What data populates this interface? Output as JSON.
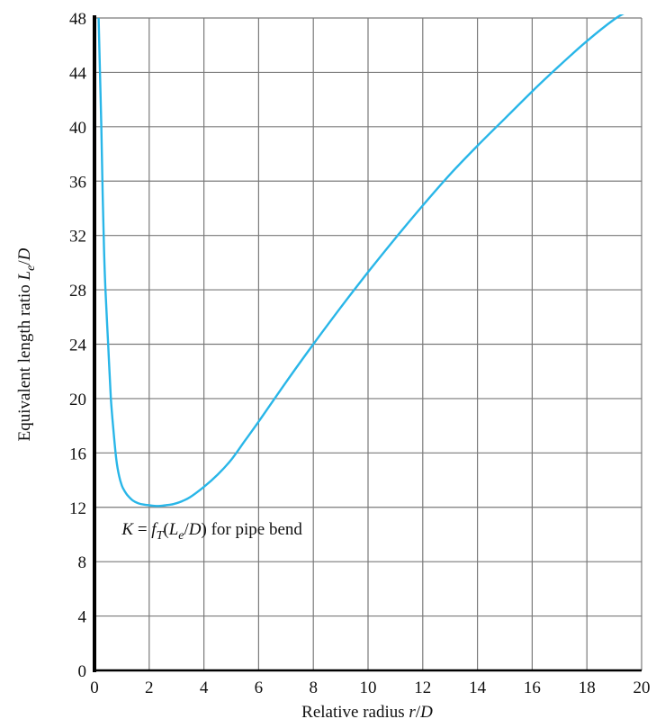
{
  "chart_data": {
    "type": "line",
    "xlabel": {
      "prefix": "Relative radius ",
      "var": "r",
      "suffix": "/",
      "var2": "D"
    },
    "ylabel": {
      "prefix": "Equivalent length ratio ",
      "var": "L",
      "sub": "e",
      "suffix": "/",
      "var2": "D"
    },
    "xlim": [
      0,
      20
    ],
    "ylim": [
      0,
      48
    ],
    "x_ticks": [
      "0",
      "2",
      "4",
      "6",
      "8",
      "10",
      "12",
      "14",
      "16",
      "18",
      "20"
    ],
    "y_ticks": [
      "0",
      "4",
      "8",
      "12",
      "16",
      "20",
      "24",
      "28",
      "32",
      "36",
      "40",
      "44",
      "48"
    ],
    "grid": true,
    "line_color": "#29b6e8",
    "annotation": {
      "text_K": "K",
      "text_eq": " = ",
      "text_f": "f",
      "text_T": "T",
      "text_open": "(",
      "text_L": "L",
      "text_e": "e",
      "text_slash": "/",
      "text_D": "D",
      "text_close": ") for pipe bend",
      "x": 1.0,
      "y": 10.0
    },
    "series": [
      {
        "x": [
          0.15,
          0.2,
          0.25,
          0.3,
          0.35,
          0.4,
          0.5,
          0.6,
          0.7,
          0.8,
          0.9,
          1.0,
          1.1,
          1.2,
          1.4,
          1.6,
          1.8,
          2.0,
          2.2,
          2.4,
          2.6,
          2.8,
          3.0,
          3.2,
          3.5,
          4.0,
          4.5,
          5.0,
          5.5,
          6.0,
          7.0,
          8.0,
          9.0,
          10.0,
          11.0,
          12.0,
          13.0,
          14.0,
          15.0,
          16.0,
          17.0,
          18.0,
          19.0,
          19.5
        ],
        "y": [
          48,
          44,
          40,
          35,
          31,
          28,
          24,
          20,
          17.5,
          15.5,
          14.3,
          13.6,
          13.2,
          12.9,
          12.5,
          12.3,
          12.2,
          12.15,
          12.1,
          12.1,
          12.15,
          12.2,
          12.3,
          12.45,
          12.75,
          13.5,
          14.4,
          15.5,
          16.9,
          18.3,
          21.2,
          24.0,
          26.7,
          29.3,
          31.8,
          34.2,
          36.5,
          38.6,
          40.6,
          42.6,
          44.5,
          46.3,
          47.9,
          48.5
        ]
      }
    ]
  }
}
